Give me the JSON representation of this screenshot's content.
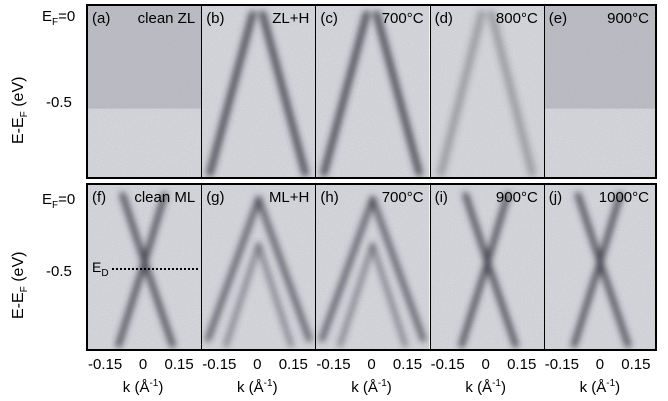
{
  "figure": {
    "rows": [
      {
        "y_axis_title": "E-E",
        "y_axis_title_sub": "F",
        "y_axis_title_unit": " (eV)",
        "y_tick_top": "E",
        "y_tick_top_sub": "F",
        "y_tick_top_eq": "=0",
        "y_tick_mid": "-0.5",
        "panels": [
          {
            "label": "(a)",
            "title": "clean ZL",
            "kind": "noise"
          },
          {
            "label": "(b)",
            "title": "ZL+H",
            "kind": "cone"
          },
          {
            "label": "(c)",
            "title": "700°C",
            "kind": "cone"
          },
          {
            "label": "(d)",
            "title": "800°C",
            "kind": "faint"
          },
          {
            "label": "(e)",
            "title": "900°C",
            "kind": "noise"
          }
        ]
      },
      {
        "y_axis_title": "E-E",
        "y_axis_title_sub": "F",
        "y_axis_title_unit": " (eV)",
        "y_tick_top": "E",
        "y_tick_top_sub": "F",
        "y_tick_top_eq": "=0",
        "y_tick_mid": "-0.5",
        "dirac_label": "E",
        "dirac_label_sub": "D",
        "panels": [
          {
            "label": "(f)",
            "title": "clean ML",
            "kind": "x"
          },
          {
            "label": "(g)",
            "title": "ML+H",
            "kind": "double"
          },
          {
            "label": "(h)",
            "title": "700°C",
            "kind": "double"
          },
          {
            "label": "(i)",
            "title": "900°C",
            "kind": "x"
          },
          {
            "label": "(j)",
            "title": "1000°C",
            "kind": "x"
          }
        ]
      }
    ],
    "x_ticks": [
      "-0.15",
      "0",
      "0.15"
    ],
    "x_axis_label": "k (Å",
    "x_axis_label_sup": "-1",
    "x_axis_label_end": ")"
  }
}
